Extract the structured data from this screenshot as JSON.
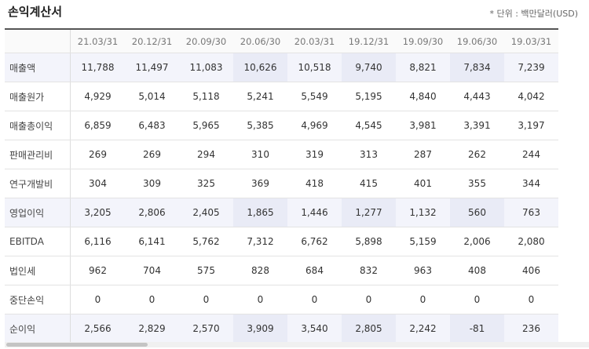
{
  "header": {
    "title": "손익계산서",
    "unit": "* 단위 : 백만달러(USD)"
  },
  "table": {
    "columns": [
      "21.03/31",
      "20.12/31",
      "20.09/30",
      "20.06/30",
      "20.03/31",
      "19.12/31",
      "19.09/30",
      "19.06/30",
      "19.03/31"
    ],
    "rows": [
      {
        "label": "매출액",
        "values": [
          "11,788",
          "11,497",
          "11,083",
          "10,626",
          "10,518",
          "9,740",
          "8,821",
          "7,834",
          "7,239"
        ]
      },
      {
        "label": "매출원가",
        "values": [
          "4,929",
          "5,014",
          "5,118",
          "5,241",
          "5,549",
          "5,195",
          "4,840",
          "4,443",
          "4,042"
        ]
      },
      {
        "label": "매출총이익",
        "values": [
          "6,859",
          "6,483",
          "5,965",
          "5,385",
          "4,969",
          "4,545",
          "3,981",
          "3,391",
          "3,197"
        ]
      },
      {
        "label": "판매관리비",
        "values": [
          "269",
          "269",
          "294",
          "310",
          "319",
          "313",
          "287",
          "262",
          "244"
        ]
      },
      {
        "label": "연구개발비",
        "values": [
          "304",
          "309",
          "325",
          "369",
          "418",
          "415",
          "401",
          "355",
          "344"
        ]
      },
      {
        "label": "영업이익",
        "values": [
          "3,205",
          "2,806",
          "2,405",
          "1,865",
          "1,446",
          "1,277",
          "1,132",
          "560",
          "763"
        ]
      },
      {
        "label": "EBITDA",
        "values": [
          "6,116",
          "6,141",
          "5,762",
          "7,312",
          "6,762",
          "5,898",
          "5,159",
          "2,006",
          "2,080"
        ]
      },
      {
        "label": "법인세",
        "values": [
          "962",
          "704",
          "575",
          "828",
          "684",
          "832",
          "963",
          "408",
          "406"
        ]
      },
      {
        "label": "중단손익",
        "values": [
          "0",
          "0",
          "0",
          "0",
          "0",
          "0",
          "0",
          "0",
          "0"
        ]
      },
      {
        "label": "순이익",
        "values": [
          "2,566",
          "2,829",
          "2,570",
          "3,909",
          "3,540",
          "2,805",
          "2,242",
          "-81",
          "236"
        ]
      }
    ]
  }
}
